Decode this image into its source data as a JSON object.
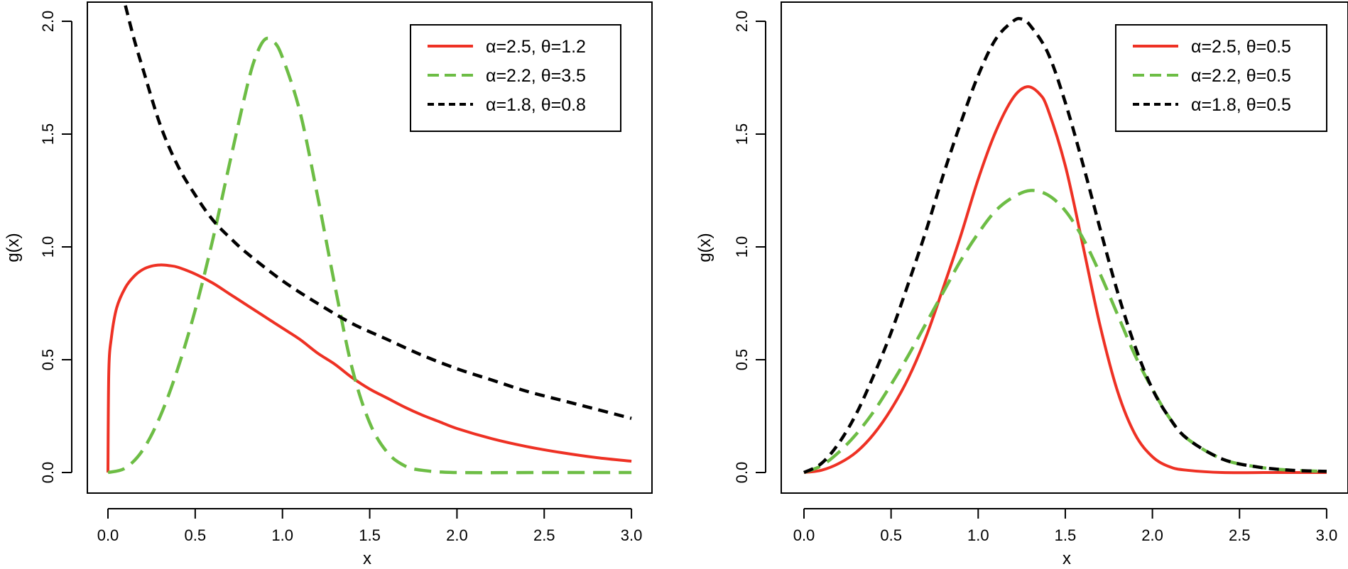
{
  "chart_data": [
    {
      "type": "line",
      "title": "",
      "xlabel": "x",
      "ylabel": "g(x)",
      "xlim": [
        0,
        3
      ],
      "ylim": [
        0,
        2
      ],
      "xticks": [
        "0.0",
        "0.5",
        "1.0",
        "1.5",
        "2.0",
        "2.5",
        "3.0"
      ],
      "yticks": [
        "0.0",
        "0.5",
        "1.0",
        "1.5",
        "2.0"
      ],
      "legend_position": "top-right",
      "series": [
        {
          "name": "α=2.5, θ=1.2",
          "color": "#ee3124",
          "style": "solid",
          "points": [
            [
              0.0,
              0.0
            ],
            [
              0.005,
              0.45
            ],
            [
              0.02,
              0.6
            ],
            [
              0.05,
              0.73
            ],
            [
              0.1,
              0.82
            ],
            [
              0.15,
              0.87
            ],
            [
              0.2,
              0.9
            ],
            [
              0.25,
              0.915
            ],
            [
              0.3,
              0.92
            ],
            [
              0.35,
              0.917
            ],
            [
              0.4,
              0.91
            ],
            [
              0.5,
              0.88
            ],
            [
              0.6,
              0.84
            ],
            [
              0.7,
              0.79
            ],
            [
              0.8,
              0.74
            ],
            [
              0.9,
              0.69
            ],
            [
              1.0,
              0.64
            ],
            [
              1.1,
              0.59
            ],
            [
              1.2,
              0.53
            ],
            [
              1.3,
              0.48
            ],
            [
              1.4,
              0.42
            ],
            [
              1.5,
              0.37
            ],
            [
              1.6,
              0.33
            ],
            [
              1.7,
              0.29
            ],
            [
              1.8,
              0.255
            ],
            [
              1.9,
              0.225
            ],
            [
              2.0,
              0.195
            ],
            [
              2.2,
              0.15
            ],
            [
              2.4,
              0.115
            ],
            [
              2.6,
              0.088
            ],
            [
              2.8,
              0.066
            ],
            [
              3.0,
              0.05
            ]
          ]
        },
        {
          "name": "α=2.2, θ=3.5",
          "color": "#6dbd45",
          "style": "long-dash",
          "points": [
            [
              0.0,
              0.0
            ],
            [
              0.1,
              0.02
            ],
            [
              0.2,
              0.1
            ],
            [
              0.3,
              0.25
            ],
            [
              0.4,
              0.46
            ],
            [
              0.5,
              0.72
            ],
            [
              0.6,
              1.03
            ],
            [
              0.7,
              1.38
            ],
            [
              0.8,
              1.72
            ],
            [
              0.85,
              1.85
            ],
            [
              0.9,
              1.92
            ],
            [
              0.95,
              1.91
            ],
            [
              1.0,
              1.84
            ],
            [
              1.1,
              1.6
            ],
            [
              1.2,
              1.23
            ],
            [
              1.3,
              0.83
            ],
            [
              1.4,
              0.46
            ],
            [
              1.5,
              0.22
            ],
            [
              1.6,
              0.09
            ],
            [
              1.7,
              0.03
            ],
            [
              1.8,
              0.01
            ],
            [
              2.0,
              0.0
            ],
            [
              2.5,
              0.0
            ],
            [
              3.0,
              0.0
            ]
          ]
        },
        {
          "name": "α=1.8, θ=0.8",
          "color": "#000000",
          "style": "dash",
          "points": [
            [
              0.1,
              2.07
            ],
            [
              0.15,
              1.92
            ],
            [
              0.2,
              1.79
            ],
            [
              0.3,
              1.54
            ],
            [
              0.4,
              1.36
            ],
            [
              0.5,
              1.23
            ],
            [
              0.6,
              1.12
            ],
            [
              0.7,
              1.04
            ],
            [
              0.8,
              0.97
            ],
            [
              1.0,
              0.85
            ],
            [
              1.2,
              0.75
            ],
            [
              1.4,
              0.66
            ],
            [
              1.6,
              0.59
            ],
            [
              1.8,
              0.52
            ],
            [
              2.0,
              0.46
            ],
            [
              2.2,
              0.41
            ],
            [
              2.4,
              0.36
            ],
            [
              2.6,
              0.32
            ],
            [
              2.8,
              0.28
            ],
            [
              3.0,
              0.24
            ]
          ]
        }
      ]
    },
    {
      "type": "line",
      "title": "",
      "xlabel": "x",
      "ylabel": "g(x)",
      "xlim": [
        0,
        3
      ],
      "ylim": [
        0,
        2
      ],
      "xticks": [
        "0.0",
        "0.5",
        "1.0",
        "1.5",
        "2.0",
        "2.5",
        "3.0"
      ],
      "yticks": [
        "0.0",
        "0.5",
        "1.0",
        "1.5",
        "2.0"
      ],
      "legend_position": "top-right",
      "series": [
        {
          "name": "α=2.5, θ=0.5",
          "color": "#ee3124",
          "style": "solid",
          "points": [
            [
              0.0,
              0.0
            ],
            [
              0.1,
              0.01
            ],
            [
              0.2,
              0.04
            ],
            [
              0.3,
              0.09
            ],
            [
              0.4,
              0.17
            ],
            [
              0.5,
              0.28
            ],
            [
              0.6,
              0.42
            ],
            [
              0.7,
              0.6
            ],
            [
              0.8,
              0.82
            ],
            [
              0.9,
              1.05
            ],
            [
              1.0,
              1.3
            ],
            [
              1.1,
              1.51
            ],
            [
              1.2,
              1.66
            ],
            [
              1.28,
              1.71
            ],
            [
              1.35,
              1.68
            ],
            [
              1.4,
              1.61
            ],
            [
              1.5,
              1.36
            ],
            [
              1.6,
              1.01
            ],
            [
              1.7,
              0.65
            ],
            [
              1.8,
              0.36
            ],
            [
              1.9,
              0.17
            ],
            [
              2.0,
              0.07
            ],
            [
              2.1,
              0.025
            ],
            [
              2.2,
              0.01
            ],
            [
              2.4,
              0.0
            ],
            [
              2.7,
              0.0
            ],
            [
              3.0,
              0.0
            ]
          ]
        },
        {
          "name": "α=2.2, θ=0.5",
          "color": "#6dbd45",
          "style": "long-dash",
          "points": [
            [
              0.0,
              0.0
            ],
            [
              0.1,
              0.03
            ],
            [
              0.2,
              0.09
            ],
            [
              0.3,
              0.17
            ],
            [
              0.4,
              0.27
            ],
            [
              0.5,
              0.39
            ],
            [
              0.6,
              0.52
            ],
            [
              0.7,
              0.66
            ],
            [
              0.8,
              0.8
            ],
            [
              0.9,
              0.94
            ],
            [
              1.0,
              1.06
            ],
            [
              1.1,
              1.16
            ],
            [
              1.2,
              1.22
            ],
            [
              1.3,
              1.25
            ],
            [
              1.4,
              1.23
            ],
            [
              1.5,
              1.16
            ],
            [
              1.6,
              1.04
            ],
            [
              1.7,
              0.88
            ],
            [
              1.8,
              0.7
            ],
            [
              1.9,
              0.52
            ],
            [
              2.0,
              0.37
            ],
            [
              2.1,
              0.24
            ],
            [
              2.2,
              0.15
            ],
            [
              2.4,
              0.06
            ],
            [
              2.6,
              0.025
            ],
            [
              2.8,
              0.01
            ],
            [
              3.0,
              0.005
            ]
          ]
        },
        {
          "name": "α=1.8, θ=0.5",
          "color": "#000000",
          "style": "dash",
          "points": [
            [
              0.0,
              0.0
            ],
            [
              0.1,
              0.04
            ],
            [
              0.2,
              0.13
            ],
            [
              0.3,
              0.26
            ],
            [
              0.4,
              0.43
            ],
            [
              0.5,
              0.62
            ],
            [
              0.6,
              0.84
            ],
            [
              0.7,
              1.07
            ],
            [
              0.8,
              1.32
            ],
            [
              0.9,
              1.55
            ],
            [
              1.0,
              1.76
            ],
            [
              1.1,
              1.92
            ],
            [
              1.2,
              2.0
            ],
            [
              1.25,
              2.01
            ],
            [
              1.3,
              1.98
            ],
            [
              1.4,
              1.86
            ],
            [
              1.5,
              1.64
            ],
            [
              1.6,
              1.37
            ],
            [
              1.7,
              1.08
            ],
            [
              1.8,
              0.8
            ],
            [
              1.9,
              0.56
            ],
            [
              2.0,
              0.37
            ],
            [
              2.1,
              0.24
            ],
            [
              2.2,
              0.15
            ],
            [
              2.4,
              0.06
            ],
            [
              2.6,
              0.025
            ],
            [
              2.8,
              0.01
            ],
            [
              3.0,
              0.005
            ]
          ]
        }
      ]
    }
  ]
}
